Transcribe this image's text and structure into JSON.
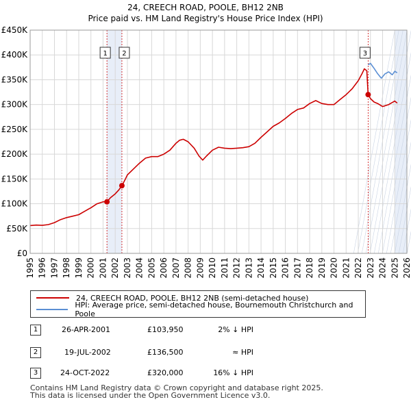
{
  "title": "24, CREECH ROAD, POOLE, BH12 2NB",
  "subtitle": "Price paid vs. HM Land Registry's House Price Index (HPI)",
  "colors": {
    "property": "#cc0000",
    "hpi": "#5b8fd4",
    "shade": "#e8eef8",
    "grid": "#d8d8d8"
  },
  "legend": {
    "property": "24, CREECH ROAD, POOLE, BH12 2NB (semi-detached house)",
    "hpi": "HPI: Average price, semi-detached house, Bournemouth Christchurch and Poole"
  },
  "transactions": [
    {
      "num": "1",
      "date": "26-APR-2001",
      "price": "£103,950",
      "relation": "2% ↓ HPI"
    },
    {
      "num": "2",
      "date": "19-JUL-2002",
      "price": "£136,500",
      "relation": "≈ HPI"
    },
    {
      "num": "3",
      "date": "24-OCT-2022",
      "price": "£320,000",
      "relation": "16% ↓ HPI"
    }
  ],
  "footer": [
    "Contains HM Land Registry data © Crown copyright and database right 2025.",
    "This data is licensed under the Open Government Licence v3.0."
  ],
  "chart_data": {
    "type": "line",
    "title": "24, CREECH ROAD, POOLE, BH12 2NB",
    "subtitle": "Price paid vs. HM Land Registry's House Price Index (HPI)",
    "xlabel": "",
    "ylabel": "",
    "xlim": [
      1995,
      2026
    ],
    "ylim": [
      0,
      450000
    ],
    "x_ticks": [
      "1995",
      "1996",
      "1997",
      "1998",
      "1999",
      "2000",
      "2001",
      "2002",
      "2003",
      "2004",
      "2005",
      "2006",
      "2007",
      "2008",
      "2009",
      "2010",
      "2011",
      "2012",
      "2013",
      "2014",
      "2015",
      "2016",
      "2017",
      "2018",
      "2019",
      "2020",
      "2021",
      "2022",
      "2023",
      "2024",
      "2025",
      "2026"
    ],
    "y_ticks": [
      {
        "value": 0,
        "label": "£0"
      },
      {
        "value": 50000,
        "label": "£50K"
      },
      {
        "value": 100000,
        "label": "£100K"
      },
      {
        "value": 150000,
        "label": "£150K"
      },
      {
        "value": 200000,
        "label": "£200K"
      },
      {
        "value": 250000,
        "label": "£250K"
      },
      {
        "value": 300000,
        "label": "£300K"
      },
      {
        "value": 350000,
        "label": "£350K"
      },
      {
        "value": 400000,
        "label": "£400K"
      },
      {
        "value": 450000,
        "label": "£450K"
      }
    ],
    "shaded_spans": [
      [
        2001.32,
        2002.55
      ],
      [
        2025.0,
        2026.0
      ]
    ],
    "markers": [
      {
        "label": "1",
        "x": 2001.32,
        "y": 103950
      },
      {
        "label": "2",
        "x": 2002.55,
        "y": 136500
      },
      {
        "label": "3",
        "x": 2022.81,
        "y": 320000
      }
    ],
    "series": [
      {
        "name": "24, CREECH ROAD, POOLE, BH12 2NB (semi-detached house)",
        "color": "#cc0000",
        "x": [
          1995,
          1995.5,
          1996,
          1996.5,
          1997,
          1997.5,
          1998,
          1998.5,
          1999,
          1999.5,
          2000,
          2000.5,
          2001,
          2001.32,
          2001.6,
          2002,
          2002.3,
          2002.55,
          2002.8,
          2003,
          2003.5,
          2004,
          2004.5,
          2005,
          2005.5,
          2006,
          2006.5,
          2007,
          2007.3,
          2007.6,
          2008,
          2008.5,
          2008.9,
          2009.2,
          2009.5,
          2010,
          2010.5,
          2011,
          2011.5,
          2012,
          2012.5,
          2013,
          2013.5,
          2014,
          2014.5,
          2015,
          2015.5,
          2016,
          2016.5,
          2017,
          2017.5,
          2018,
          2018.5,
          2019,
          2019.5,
          2020,
          2020.5,
          2021,
          2021.5,
          2022,
          2022.3,
          2022.5,
          2022.7,
          2022.81,
          2023,
          2023.3,
          2023.6,
          2024,
          2024.5,
          2025,
          2025.2
        ],
        "values": [
          56000,
          57000,
          56500,
          58000,
          62000,
          68000,
          72000,
          75000,
          78000,
          85000,
          92000,
          100000,
          104000,
          103950,
          112000,
          120000,
          128000,
          136500,
          148000,
          158000,
          170000,
          182000,
          192000,
          195000,
          195000,
          200000,
          208000,
          222000,
          228000,
          230000,
          225000,
          212000,
          196000,
          188000,
          196000,
          208000,
          214000,
          212000,
          211000,
          212000,
          213000,
          215000,
          222000,
          234000,
          245000,
          256000,
          263000,
          272000,
          282000,
          290000,
          293000,
          302000,
          308000,
          302000,
          300000,
          300000,
          310000,
          320000,
          332000,
          348000,
          362000,
          372000,
          368000,
          320000,
          312000,
          305000,
          302000,
          296000,
          300000,
          307000,
          303000
        ]
      },
      {
        "name": "HPI: Average price, semi-detached house, Bournemouth Christchurch and Poole",
        "color": "#5b8fd4",
        "x": [
          2022.81,
          2023,
          2023.3,
          2023.6,
          2023.9,
          2024.2,
          2024.5,
          2024.8,
          2025,
          2025.2
        ],
        "values": [
          380000,
          383000,
          373000,
          362000,
          353000,
          362000,
          366000,
          360000,
          367000,
          364000
        ]
      }
    ]
  }
}
